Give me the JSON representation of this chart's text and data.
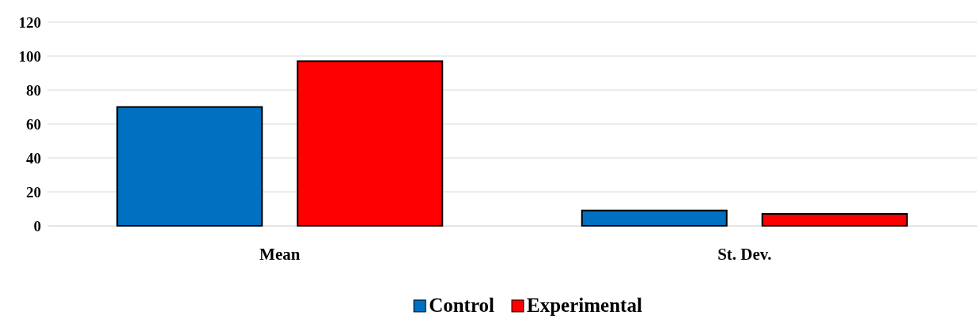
{
  "chart_data": {
    "type": "bar",
    "categories": [
      "Mean",
      "St. Dev."
    ],
    "series": [
      {
        "name": "Control",
        "color": "#0070c0",
        "values": [
          70,
          9
        ]
      },
      {
        "name": "Experimental",
        "color": "#ff0000",
        "values": [
          97,
          7
        ]
      }
    ],
    "ylim": [
      0,
      120
    ],
    "yticks": [
      0,
      20,
      40,
      60,
      80,
      100,
      120
    ],
    "grid": "y",
    "legend": "bottom"
  }
}
